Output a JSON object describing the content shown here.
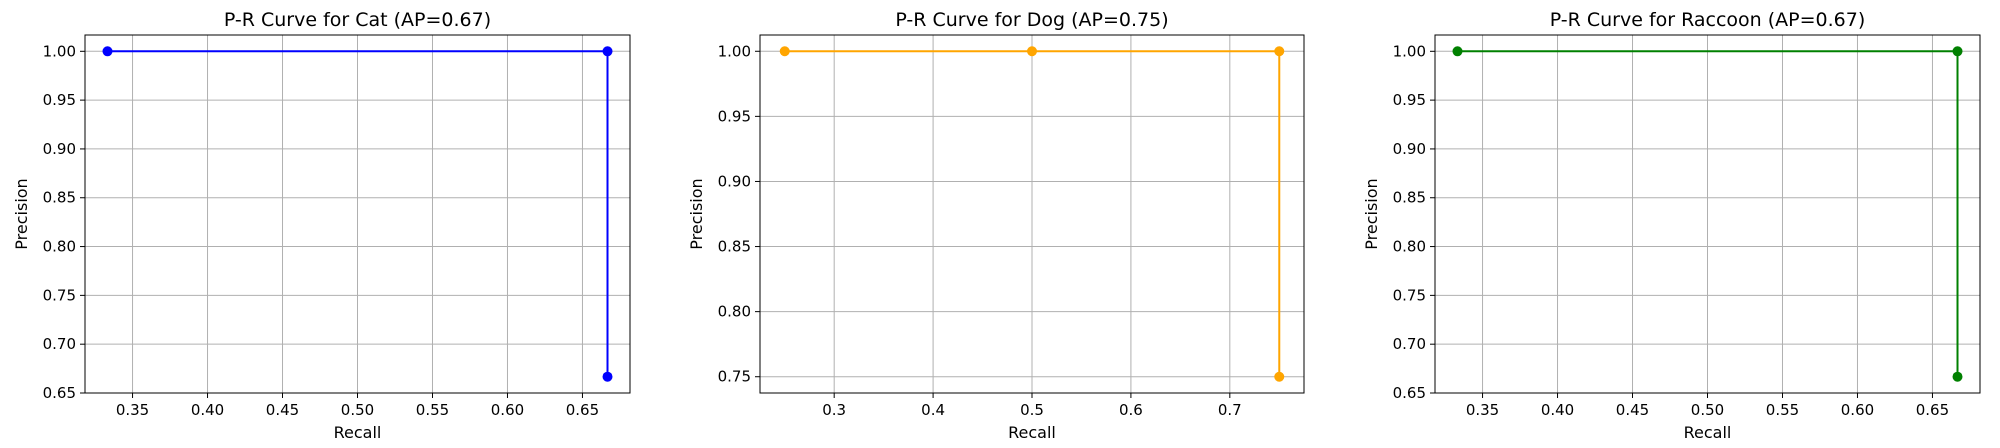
{
  "chart_data": [
    {
      "type": "line",
      "title": "P-R Curve for Cat (AP=0.67)",
      "xlabel": "Recall",
      "ylabel": "Precision",
      "xlim": [
        0.3183,
        0.6817
      ],
      "ylim": [
        0.65,
        1.0167
      ],
      "xticks": [
        0.35,
        0.4,
        0.45,
        0.5,
        0.55,
        0.6,
        0.65
      ],
      "xtick_labels": [
        "0.35",
        "0.40",
        "0.45",
        "0.50",
        "0.55",
        "0.60",
        "0.65"
      ],
      "yticks": [
        0.65,
        0.7,
        0.75,
        0.8,
        0.85,
        0.9,
        0.95,
        1.0
      ],
      "ytick_labels": [
        "0.65",
        "0.70",
        "0.75",
        "0.80",
        "0.85",
        "0.90",
        "0.95",
        "1.00"
      ],
      "grid": true,
      "color": "#0000ff",
      "series": [
        {
          "x": [
            0.3333,
            0.6667,
            0.6667
          ],
          "y": [
            1.0,
            1.0,
            0.6667
          ]
        }
      ]
    },
    {
      "type": "line",
      "title": "P-R Curve for Dog (AP=0.75)",
      "xlabel": "Recall",
      "ylabel": "Precision",
      "xlim": [
        0.225,
        0.775
      ],
      "ylim": [
        0.7375,
        1.0125
      ],
      "xticks": [
        0.3,
        0.4,
        0.5,
        0.6,
        0.7
      ],
      "xtick_labels": [
        "0.3",
        "0.4",
        "0.5",
        "0.6",
        "0.7"
      ],
      "yticks": [
        0.75,
        0.8,
        0.85,
        0.9,
        0.95,
        1.0
      ],
      "ytick_labels": [
        "0.75",
        "0.80",
        "0.85",
        "0.90",
        "0.95",
        "1.00"
      ],
      "grid": true,
      "color": "#ffa500",
      "series": [
        {
          "x": [
            0.25,
            0.5,
            0.75,
            0.75
          ],
          "y": [
            1.0,
            1.0,
            1.0,
            0.75
          ]
        }
      ]
    },
    {
      "type": "line",
      "title": "P-R Curve for Raccoon (AP=0.67)",
      "xlabel": "Recall",
      "ylabel": "Precision",
      "xlim": [
        0.3183,
        0.6817
      ],
      "ylim": [
        0.65,
        1.0167
      ],
      "xticks": [
        0.35,
        0.4,
        0.45,
        0.5,
        0.55,
        0.6,
        0.65
      ],
      "xtick_labels": [
        "0.35",
        "0.40",
        "0.45",
        "0.50",
        "0.55",
        "0.60",
        "0.65"
      ],
      "yticks": [
        0.65,
        0.7,
        0.75,
        0.8,
        0.85,
        0.9,
        0.95,
        1.0
      ],
      "ytick_labels": [
        "0.65",
        "0.70",
        "0.75",
        "0.80",
        "0.85",
        "0.90",
        "0.95",
        "1.00"
      ],
      "grid": true,
      "color": "#008000",
      "series": [
        {
          "x": [
            0.3333,
            0.6667,
            0.6667
          ],
          "y": [
            1.0,
            1.0,
            0.6667
          ]
        }
      ]
    }
  ]
}
